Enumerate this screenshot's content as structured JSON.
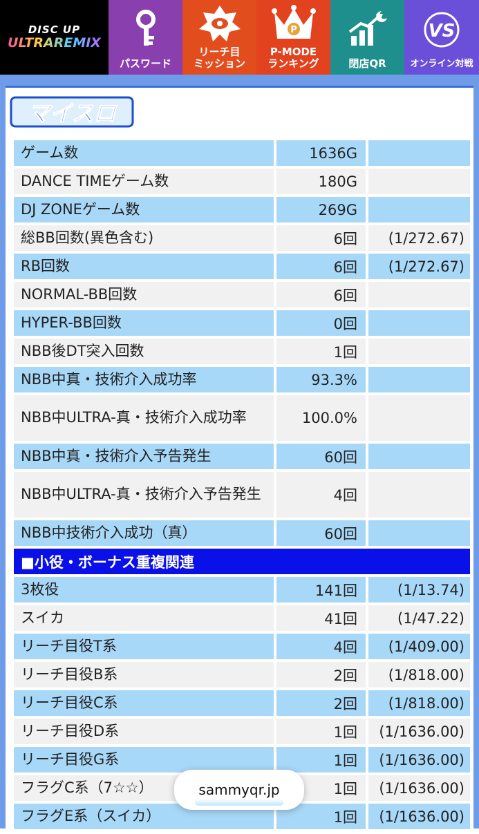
{
  "nav": {
    "logo_line1": "DISC UP",
    "logo_line2": "ULTRAREMIX",
    "items": [
      {
        "label": "パスワード",
        "icon": "key-icon"
      },
      {
        "label": "リーチ目\nミッション",
        "icon": "mission-emblem-icon"
      },
      {
        "label": "P-MODE\nランキング",
        "icon": "crown-icon"
      },
      {
        "label": "閉店QR",
        "icon": "rising-chart-moon-icon"
      },
      {
        "label": "オンライン対戦",
        "icon": "online-vs-icon"
      }
    ]
  },
  "page": {
    "title": "マイスロ",
    "section_title": "■小役・ボーナス重複関連"
  },
  "stats": [
    {
      "label": "ゲーム数",
      "value": "1636G",
      "ratio": ""
    },
    {
      "label": "DANCE TIMEゲーム数",
      "value": "180G",
      "ratio": ""
    },
    {
      "label": "DJ ZONEゲーム数",
      "value": "269G",
      "ratio": ""
    },
    {
      "label": "総BB回数(異色含む)",
      "value": "6回",
      "ratio": "(1/272.67)"
    },
    {
      "label": "RB回数",
      "value": "6回",
      "ratio": "(1/272.67)"
    },
    {
      "label": "NORMAL-BB回数",
      "value": "6回",
      "ratio": ""
    },
    {
      "label": "HYPER-BB回数",
      "value": "0回",
      "ratio": ""
    },
    {
      "label": "NBB後DT突入回数",
      "value": "1回",
      "ratio": ""
    },
    {
      "label": "NBB中真・技術介入成功率",
      "value": "93.3%",
      "ratio": ""
    },
    {
      "label": "NBB中ULTRA-真・技術介入成功率",
      "value": "100.0%",
      "ratio": ""
    },
    {
      "label": "NBB中真・技術介入予告発生",
      "value": "60回",
      "ratio": ""
    },
    {
      "label": "NBB中ULTRA-真・技術介入予告発生",
      "value": "4回",
      "ratio": ""
    },
    {
      "label": "NBB中技術介入成功（真）",
      "value": "60回",
      "ratio": ""
    }
  ],
  "koyaku": [
    {
      "label": "3枚役",
      "value": "141回",
      "ratio": "(1/13.74)"
    },
    {
      "label": "スイカ",
      "value": "41回",
      "ratio": "(1/47.22)"
    },
    {
      "label": "リーチ目役T系",
      "value": "4回",
      "ratio": "(1/409.00)"
    },
    {
      "label": "リーチ目役B系",
      "value": "2回",
      "ratio": "(1/818.00)"
    },
    {
      "label": "リーチ目役C系",
      "value": "2回",
      "ratio": "(1/818.00)"
    },
    {
      "label": "リーチ目役D系",
      "value": "1回",
      "ratio": "(1/1636.00)"
    },
    {
      "label": "リーチ目役G系",
      "value": "1回",
      "ratio": "(1/1636.00)"
    },
    {
      "label": "フラグC系（7☆☆）",
      "value": "1回",
      "ratio": "(1/1636.00)"
    },
    {
      "label": "フラグE系（スイカ）",
      "value": "1回",
      "ratio": "(1/1636.00)"
    }
  ],
  "browser": {
    "url": "sammyqr.jp"
  },
  "colors": {
    "row_blue": "#a8d8f8",
    "row_gray": "#f1f1f1",
    "section": "#0a10e8",
    "frame": "#6f9ce8"
  }
}
